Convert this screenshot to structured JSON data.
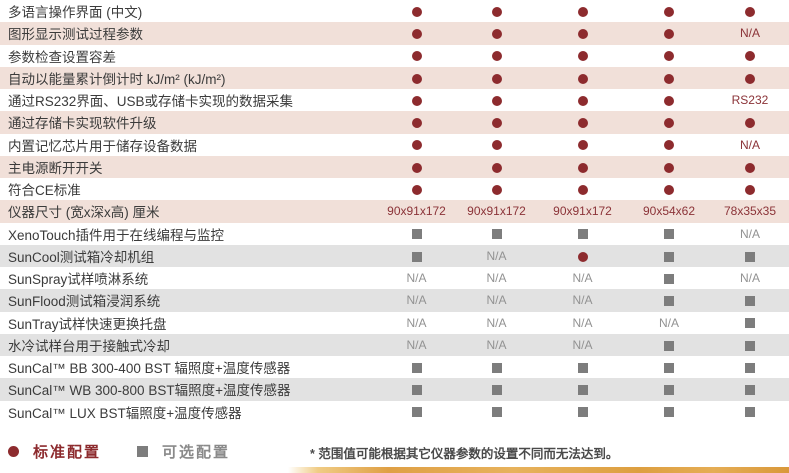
{
  "table": {
    "legend_meaning": {
      "dot": "标准配置",
      "square": "可选配置"
    },
    "rows": [
      {
        "label": "多语言操作界面 (中文)",
        "shade": "white",
        "section": "top",
        "cells": [
          "dot",
          "dot",
          "dot",
          "dot",
          "dot"
        ]
      },
      {
        "label": "图形显示测试过程参数",
        "shade": "pink",
        "section": "top",
        "cells": [
          "dot",
          "dot",
          "dot",
          "dot",
          "N/A"
        ]
      },
      {
        "label": "参数检查设置容差",
        "shade": "white",
        "section": "top",
        "cells": [
          "dot",
          "dot",
          "dot",
          "dot",
          "dot"
        ]
      },
      {
        "label": "自动以能量累计倒计时 kJ/m² (kJ/m²)",
        "shade": "pink",
        "section": "top",
        "cells": [
          "dot",
          "dot",
          "dot",
          "dot",
          "dot"
        ]
      },
      {
        "label": "通过RS232界面、USB或存储卡实现的数据采集",
        "shade": "white",
        "section": "top",
        "cells": [
          "dot",
          "dot",
          "dot",
          "dot",
          "RS232"
        ]
      },
      {
        "label": "通过存储卡实现软件升级",
        "shade": "pink",
        "section": "top",
        "cells": [
          "dot",
          "dot",
          "dot",
          "dot",
          "dot"
        ]
      },
      {
        "label": "内置记忆芯片用于储存设备数据",
        "shade": "white",
        "section": "top",
        "cells": [
          "dot",
          "dot",
          "dot",
          "dot",
          "N/A"
        ]
      },
      {
        "label": "主电源断开开关",
        "shade": "pink",
        "section": "top",
        "cells": [
          "dot",
          "dot",
          "dot",
          "dot",
          "dot"
        ]
      },
      {
        "label": "符合CE标准",
        "shade": "white",
        "section": "top",
        "cells": [
          "dot",
          "dot",
          "dot",
          "dot",
          "dot"
        ]
      },
      {
        "label": "仪器尺寸 (宽x深x高) 厘米",
        "shade": "pink",
        "section": "top",
        "cells": [
          "90x91x172",
          "90x91x172",
          "90x91x172",
          "90x54x62",
          "78x35x35"
        ]
      },
      {
        "label": "XenoTouch插件用于在线编程与监控",
        "shade": "white",
        "section": "bottom",
        "cells": [
          "square",
          "square",
          "square",
          "square",
          "N/A"
        ]
      },
      {
        "label": "SunCool测试箱冷却机组",
        "shade": "gray",
        "section": "bottom",
        "cells": [
          "square",
          "N/A",
          "dot",
          "square",
          "square"
        ]
      },
      {
        "label": "SunSpray试样喷淋系统",
        "shade": "white",
        "section": "bottom",
        "cells": [
          "N/A",
          "N/A",
          "N/A",
          "square",
          "N/A"
        ]
      },
      {
        "label": "SunFlood测试箱浸润系统",
        "shade": "gray",
        "section": "bottom",
        "cells": [
          "N/A",
          "N/A",
          "N/A",
          "square",
          "square"
        ]
      },
      {
        "label": "SunTray试样快速更换托盘",
        "shade": "white",
        "section": "bottom",
        "cells": [
          "N/A",
          "N/A",
          "N/A",
          "N/A",
          "square"
        ]
      },
      {
        "label": "水冷试样台用于接触式冷却",
        "shade": "gray",
        "section": "bottom",
        "cells": [
          "N/A",
          "N/A",
          "N/A",
          "square",
          "square"
        ]
      },
      {
        "label": "SunCal™ BB 300-400 BST 辐照度+温度传感器",
        "shade": "white",
        "section": "bottom",
        "cells": [
          "square",
          "square",
          "square",
          "square",
          "square"
        ]
      },
      {
        "label": "SunCal™ WB 300-800 BST辐照度+温度传感器",
        "shade": "gray",
        "section": "bottom",
        "cells": [
          "square",
          "square",
          "square",
          "square",
          "square"
        ]
      },
      {
        "label": "SunCal™ LUX BST辐照度+温度传感器",
        "shade": "white",
        "section": "bottom",
        "cells": [
          "square",
          "square",
          "square",
          "square",
          "square"
        ]
      }
    ]
  },
  "legend": {
    "standard_label": "标准配置",
    "optional_label": "可选配置"
  },
  "footnote": "* 范围值可能根据其它仪器参数的设置不同而无法达到。",
  "colors": {
    "standard_dot": "#8d2b2e",
    "optional_square": "#7d7d7d",
    "row_pink": "#f1e0d9",
    "row_gray": "#e2e2e2",
    "top_value_text": "#8b3338",
    "bottom_value_text": "#929292",
    "bottom_bar_gold": "#dfa045"
  }
}
